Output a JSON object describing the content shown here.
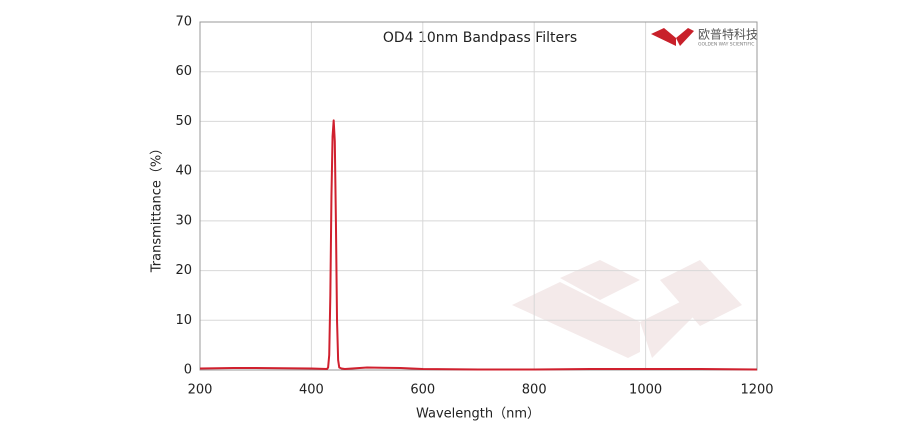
{
  "chart_data": {
    "type": "line",
    "title": "OD4 10nm Bandpass Filters",
    "x_label": "Wavelength（nm）",
    "y_label": "Transmittance（%）",
    "x": [
      200,
      260,
      300,
      400,
      428,
      430,
      432,
      434,
      436,
      438,
      440,
      442,
      444,
      446,
      448,
      450,
      454,
      460,
      500,
      560,
      600,
      700,
      800,
      900,
      1000,
      1100,
      1200
    ],
    "series": [
      {
        "name": "OD4 10nm Bandpass Filters",
        "color": "#d0202e",
        "values": [
          0.3,
          0.4,
          0.4,
          0.3,
          0.2,
          0.5,
          3,
          15,
          35,
          47,
          50.2,
          46,
          30,
          10,
          2,
          0.5,
          0.3,
          0.2,
          0.5,
          0.4,
          0.2,
          0.1,
          0.1,
          0.2,
          0.2,
          0.2,
          0.1
        ]
      }
    ],
    "xlim": [
      200,
      1200
    ],
    "xticks": [
      200,
      400,
      600,
      800,
      1000,
      1200
    ],
    "ylim": [
      0,
      70
    ],
    "yticks": [
      0,
      10,
      20,
      30,
      40,
      50,
      60,
      70
    ],
    "grid": true
  },
  "logo": {
    "name": "欧普特科技",
    "tagline": "GOLDEN WAY SCIENTIFIC"
  }
}
